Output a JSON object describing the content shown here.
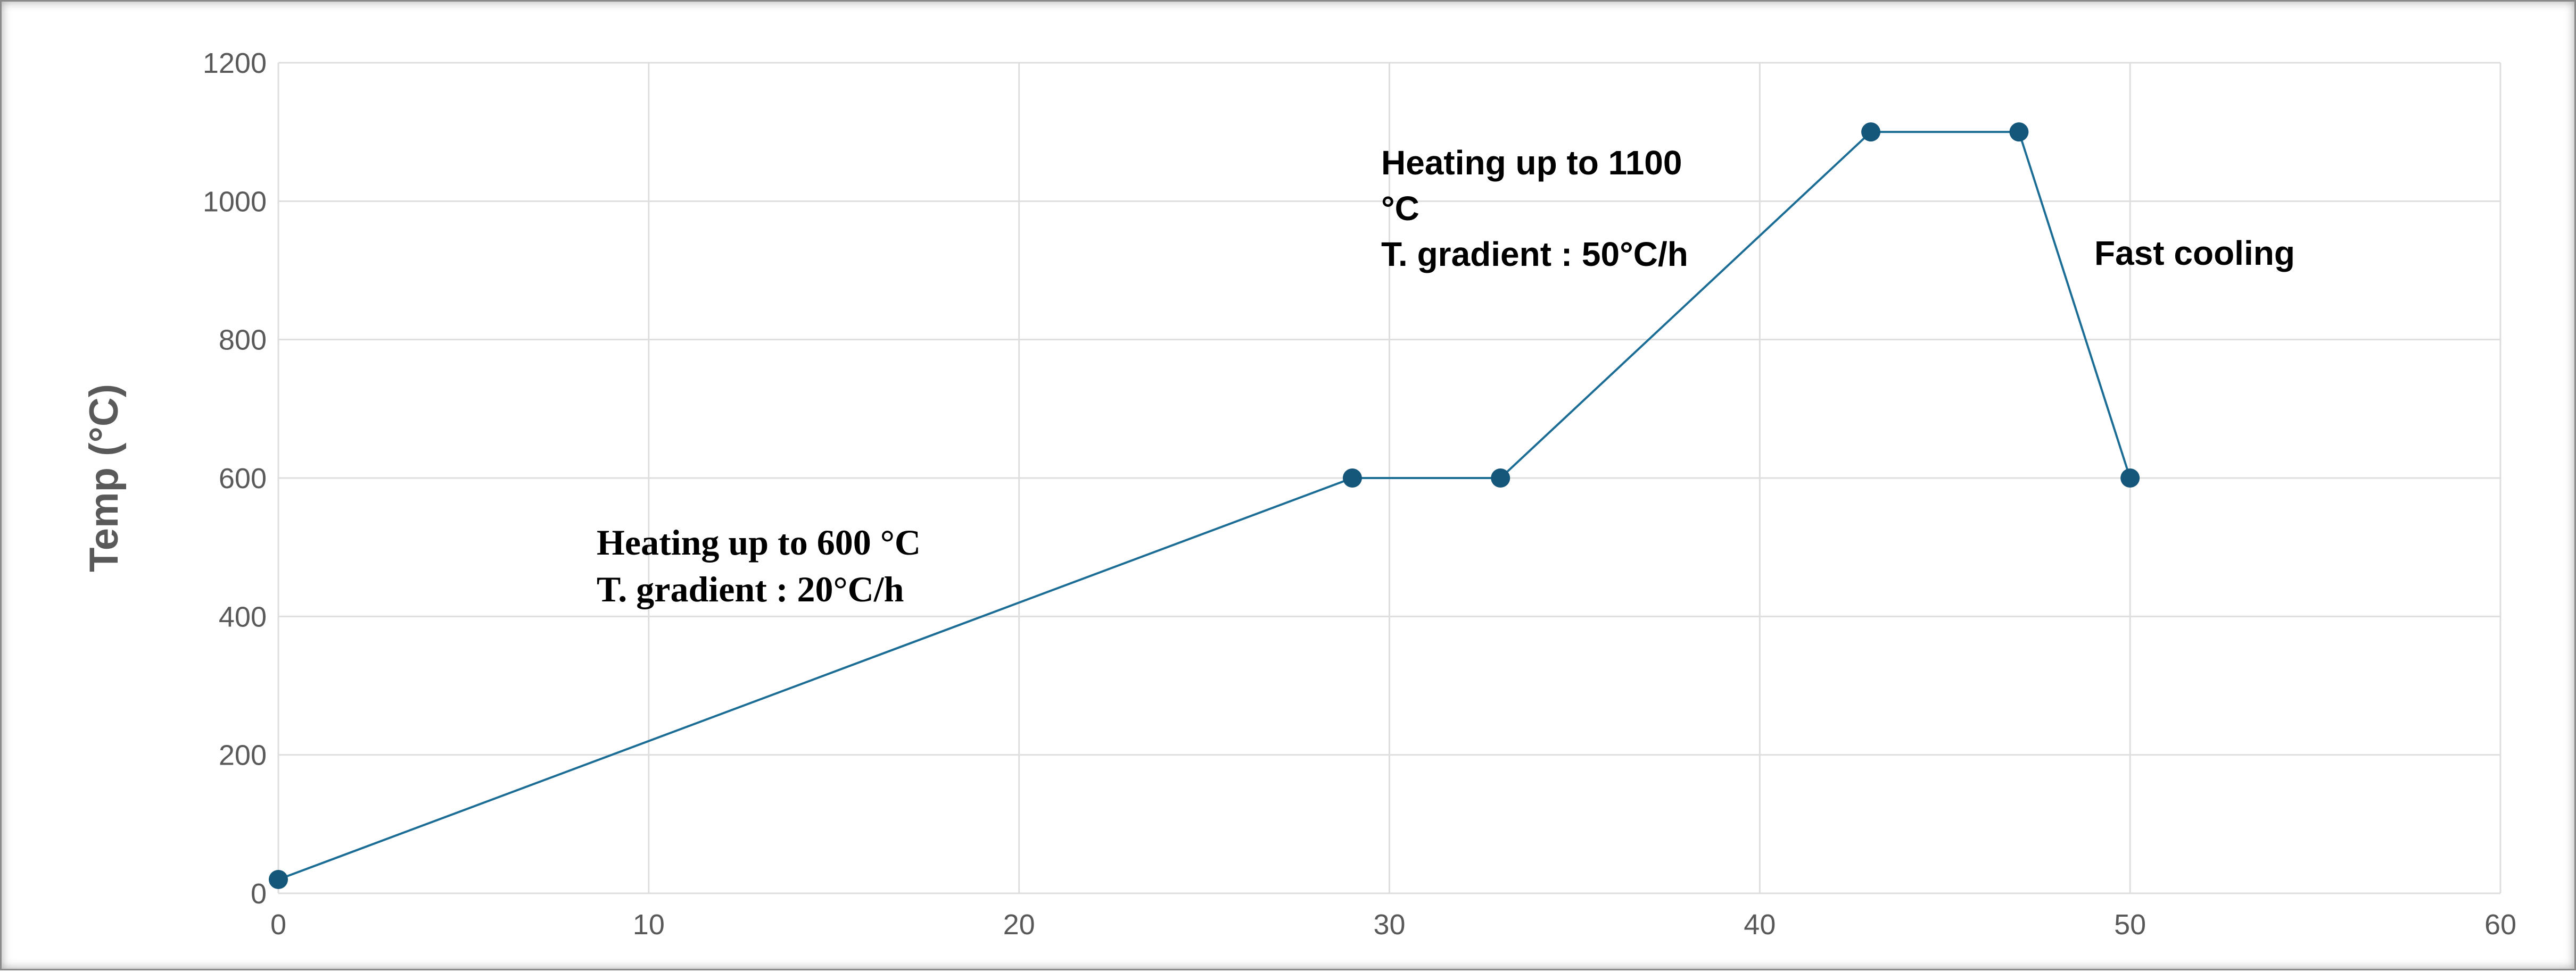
{
  "chart_data": {
    "type": "line",
    "title": "",
    "xlabel": "",
    "ylabel": "Temp (°C)",
    "xlim": [
      0,
      60
    ],
    "ylim": [
      0,
      1200
    ],
    "x_ticks": [
      0,
      10,
      20,
      30,
      40,
      50,
      60
    ],
    "y_ticks": [
      0,
      200,
      400,
      600,
      800,
      1000,
      1200
    ],
    "grid": true,
    "legend": "none",
    "colors": {
      "line": "#1b6d96",
      "point": "#15577a",
      "grid": "#dedede"
    },
    "series": [
      {
        "x": [
          0,
          29,
          33,
          43,
          47,
          50
        ],
        "y": [
          20,
          600,
          600,
          1100,
          1100,
          600
        ]
      }
    ],
    "annotations": [
      {
        "lines": [
          "Heating up to 600 °C",
          "T. gradient : 20°C/h"
        ],
        "style": "serif"
      },
      {
        "lines": [
          "Heating up to 1100",
          "°C",
          "T. gradient : 50°C/h"
        ],
        "style": "sans"
      },
      {
        "lines": [
          "Fast cooling"
        ],
        "style": "sans"
      }
    ]
  }
}
